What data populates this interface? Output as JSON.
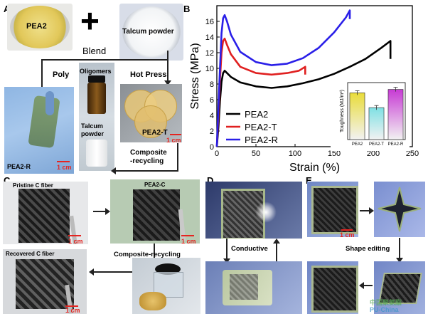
{
  "panel_letters": {
    "a": "A",
    "b": "B",
    "c": "C",
    "d": "D",
    "e": "E"
  },
  "panel_a": {
    "pea2": "PEA2",
    "plus": "+",
    "talcum": "Talcum powder",
    "blend": "Blend",
    "poly": "Poly",
    "oligomers": "Oligomers",
    "hot_press": "Hot Press",
    "talcum_vial": "Talcum\npowder",
    "pea2_t": "PEA2-T",
    "pea2_r": "PEA2-R",
    "composite_recycling": "Composite\n-recycling",
    "scale": "1 cm"
  },
  "panel_c": {
    "pristine": "Pristine C fiber",
    "pea2c": "PEA2-C",
    "recovered": "Recovered C fiber",
    "composite_recycling": "Composite-recycling",
    "scale": "1 cm"
  },
  "panel_d": {
    "conductive": "Conductive"
  },
  "panel_e": {
    "shape_editing": "Shape editing",
    "scale": "1 cm"
  },
  "watermark": {
    "line1": "中国聚氨酯",
    "line2": "PU-China"
  },
  "chart_data": [
    {
      "type": "line",
      "title": "",
      "xlabel": "Strain (%)",
      "ylabel": "Stress (MPa)",
      "xlim": [
        0,
        250
      ],
      "ylim": [
        0,
        18
      ],
      "xticks": [
        0,
        50,
        100,
        150,
        200,
        250
      ],
      "yticks": [
        0,
        2,
        4,
        6,
        8,
        10,
        12,
        14,
        16
      ],
      "legend_position": "bottom-left",
      "series": [
        {
          "name": "PEA2",
          "color": "#000000",
          "x": [
            0,
            2,
            4,
            6,
            8,
            10,
            13,
            18,
            30,
            50,
            70,
            90,
            110,
            130,
            150,
            170,
            190,
            210,
            222,
            222
          ],
          "y": [
            0,
            2.5,
            5.8,
            8.3,
            9.4,
            9.7,
            9.4,
            8.9,
            8.2,
            7.7,
            7.5,
            7.7,
            8.1,
            8.6,
            9.3,
            10.2,
            11.2,
            12.6,
            13.5,
            11.2
          ]
        },
        {
          "name": "PEA2-T",
          "color": "#e02020",
          "x": [
            0,
            2,
            4,
            6,
            8,
            10,
            13,
            18,
            30,
            50,
            70,
            90,
            105,
            113,
            113
          ],
          "y": [
            0,
            4,
            8.5,
            12,
            13.5,
            13.8,
            13.0,
            11.8,
            10.2,
            9.4,
            9.2,
            9.4,
            9.7,
            10.2,
            9.2
          ]
        },
        {
          "name": "PEA2-R",
          "color": "#2a1fe8",
          "x": [
            0,
            2,
            4,
            6,
            8,
            10,
            13,
            18,
            30,
            50,
            70,
            90,
            110,
            130,
            150,
            165,
            170,
            170
          ],
          "y": [
            0,
            5,
            10,
            14.5,
            16.4,
            16.8,
            16.0,
            14.3,
            12.1,
            10.8,
            10.4,
            10.6,
            11.3,
            12.6,
            14.6,
            16.5,
            17.4,
            16.3
          ]
        }
      ]
    },
    {
      "type": "bar",
      "title": "",
      "ylabel": "Toughness (MJ/m³)",
      "categories": [
        "PEA2",
        "PEA2-T",
        "PEA2-R"
      ],
      "values": [
        0.82,
        0.56,
        0.88
      ],
      "ylim": [
        0,
        1
      ],
      "colors": [
        "#e9dc3a",
        "#7fe0e3",
        "#c73bd4"
      ]
    }
  ]
}
